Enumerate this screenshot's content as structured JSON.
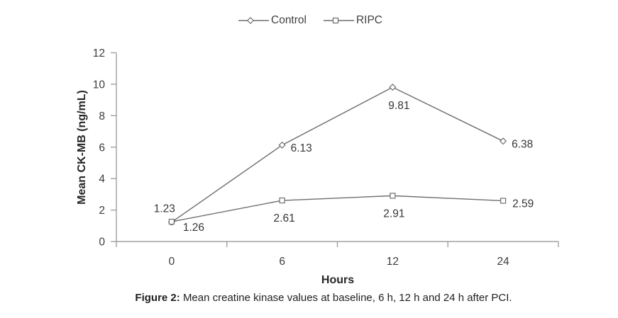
{
  "figure": {
    "caption_prefix": "Figure 2:",
    "caption_text": " Mean creatine kinase values at baseline, 6 h, 12 h and 24 h after PCI."
  },
  "chart_data": {
    "type": "line",
    "title": "",
    "xlabel": "Hours",
    "ylabel": "Mean CK-MB (ng/mL)",
    "categories": [
      "0",
      "6",
      "12",
      "24"
    ],
    "yticks": [
      0,
      2,
      4,
      6,
      8,
      10,
      12
    ],
    "ylim": [
      0,
      12
    ],
    "grid": false,
    "legend_position": "top-center",
    "series": [
      {
        "name": "Control",
        "marker": "diamond",
        "values": [
          1.23,
          6.13,
          9.81,
          6.38
        ],
        "labels": [
          "1.23",
          "6.13",
          "9.81",
          "6.38"
        ]
      },
      {
        "name": "RIPC",
        "marker": "square",
        "values": [
          1.26,
          2.61,
          2.91,
          2.59
        ],
        "labels": [
          "1.26",
          "2.61",
          "2.91",
          "2.59"
        ]
      }
    ],
    "colors": {
      "series_line": "#6e6e6e",
      "marker_fill": "#ffffff",
      "axis": "#a0a0a0",
      "tick_text": "#3d3d3d",
      "data_label_text": "#363636",
      "legend_text": "#404040"
    }
  }
}
